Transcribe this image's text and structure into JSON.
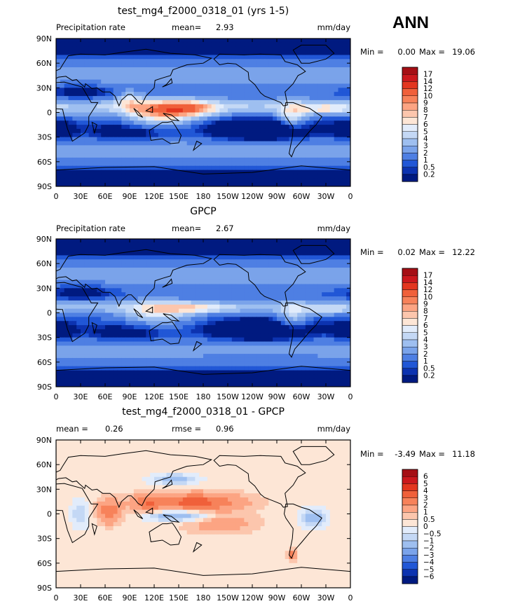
{
  "figure": {
    "season_label": "ANN",
    "x_ticks": [
      "0",
      "30E",
      "60E",
      "90E",
      "120E",
      "150E",
      "180",
      "150W",
      "120W",
      "90W",
      "60W",
      "30W",
      "0"
    ],
    "y_ticks": [
      "90N",
      "60N",
      "30N",
      "0",
      "30S",
      "60S",
      "90S"
    ]
  },
  "chart_data": [
    {
      "type": "heatmap",
      "title": "test_mg4_f2000_0318_01 (yrs 1-5)",
      "left_label": "Precipitation rate",
      "stat1_label": "mean=",
      "stat1_value": "2.93",
      "units": "mm/day",
      "min_label": "Min =",
      "min_value": "0.00",
      "max_label": "Max =",
      "max_value": "19.06",
      "levels": [
        "17",
        "14",
        "12",
        "10",
        "9",
        "8",
        "7",
        "6",
        "5",
        "4",
        "3",
        "2",
        "1",
        "0.5",
        "0.2"
      ],
      "colors": [
        "#a50f15",
        "#cb181d",
        "#e3361f",
        "#f0603a",
        "#f7825a",
        "#fca483",
        "#fcc6ad",
        "#fde6d6",
        "#e2ecfb",
        "#c4d8f5",
        "#9ebff0",
        "#7aa3ea",
        "#4e7fe3",
        "#2157d6",
        "#0c33b0",
        "#001a80"
      ],
      "field": "precip_model"
    },
    {
      "type": "heatmap",
      "title": "GPCP",
      "left_label": "Precipitation rate",
      "stat1_label": "mean=",
      "stat1_value": "2.67",
      "units": "mm/day",
      "min_label": "Min =",
      "min_value": "0.02",
      "max_label": "Max =",
      "max_value": "12.22",
      "levels": [
        "17",
        "14",
        "12",
        "10",
        "9",
        "8",
        "7",
        "6",
        "5",
        "4",
        "3",
        "2",
        "1",
        "0.5",
        "0.2"
      ],
      "colors": [
        "#a50f15",
        "#cb181d",
        "#e3361f",
        "#f0603a",
        "#f7825a",
        "#fca483",
        "#fcc6ad",
        "#fde6d6",
        "#e2ecfb",
        "#c4d8f5",
        "#9ebff0",
        "#7aa3ea",
        "#4e7fe3",
        "#2157d6",
        "#0c33b0",
        "#001a80"
      ],
      "field": "precip_obs"
    },
    {
      "type": "heatmap",
      "title": "test_mg4_f2000_0318_01 - GPCP",
      "left_label": "mean =",
      "left_value": "0.26",
      "stat1_label": "rmse =",
      "stat1_value": "0.96",
      "units": "mm/day",
      "min_label": "Min =",
      "min_value": "-3.49",
      "max_label": "Max =",
      "max_value": "11.18",
      "levels": [
        "6",
        "5",
        "4",
        "3",
        "2",
        "1",
        "0.5",
        "0",
        "−0.5",
        "−1",
        "−2",
        "−3",
        "−4",
        "−5",
        "−6"
      ],
      "colors": [
        "#a50f15",
        "#cb181d",
        "#e3361f",
        "#f0603a",
        "#f7825a",
        "#fca483",
        "#fcc6ad",
        "#fde6d6",
        "#e2ecfb",
        "#c4d8f5",
        "#9ebff0",
        "#7aa3ea",
        "#4e7fe3",
        "#2157d6",
        "#0c33b0",
        "#001a80"
      ],
      "field": "diff"
    }
  ]
}
